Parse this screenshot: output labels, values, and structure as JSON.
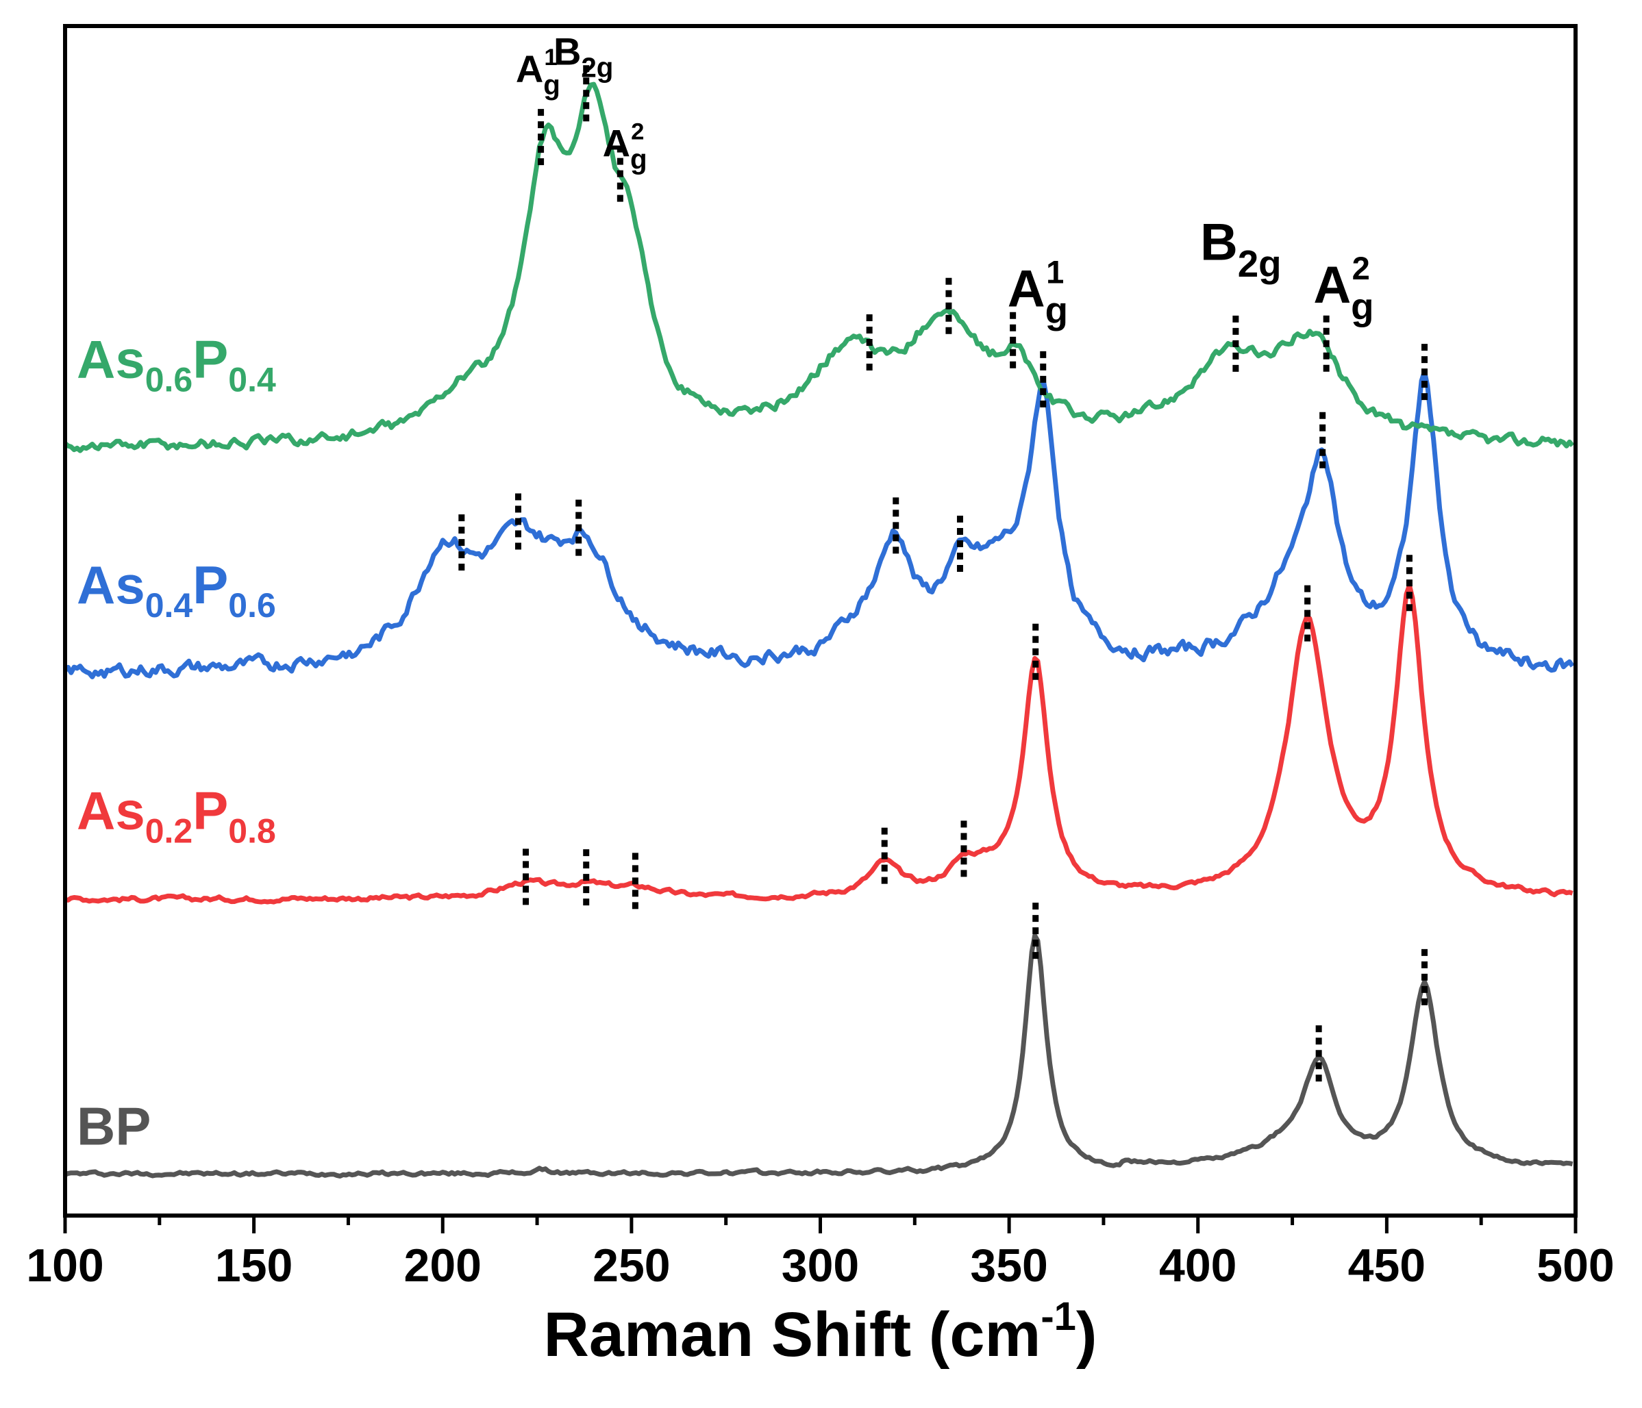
{
  "chart_data": {
    "type": "line",
    "title": "",
    "xlabel": "Raman Shift (cm",
    "xlabel_sup": "-1",
    "xlabel_close": ")",
    "ylabel": "",
    "xlim": [
      100,
      500
    ],
    "xticks": [
      "100",
      "150",
      "200",
      "250",
      "300",
      "350",
      "400",
      "450",
      "500"
    ],
    "yticks_shown": false,
    "series": [
      {
        "id": "bp",
        "name": "BP",
        "color": "#555555",
        "offset": 0,
        "baseline": 0.9,
        "peaks": [
          [
            357,
            16.8,
            3.5
          ],
          [
            432,
            6.7,
            5
          ],
          [
            460,
            12.9,
            4.5
          ],
          [
            423,
            1.2,
            12
          ],
          [
            226,
            0.25,
            3
          ]
        ],
        "noise": 0.12,
        "markers": [
          357,
          432,
          460
        ]
      },
      {
        "id": "as02",
        "name": "As",
        "sub1": "0.2",
        "name2": "P",
        "sub2": "0.8",
        "color": "#f0393c",
        "offset": 20,
        "baseline": 0,
        "peaks": [
          [
            357,
            16.5,
            4
          ],
          [
            429,
            19.3,
            6.5
          ],
          [
            456,
            21,
            4.5
          ],
          [
            317,
            2.3,
            5
          ],
          [
            338,
            1.6,
            5
          ],
          [
            222,
            1.0,
            8
          ],
          [
            238,
            0.8,
            8
          ],
          [
            252,
            0.6,
            8
          ],
          [
            345,
            1.2,
            8
          ]
        ],
        "noise": 0.15,
        "markers": [
          222,
          238,
          251,
          317,
          338,
          357,
          429,
          456
        ]
      },
      {
        "id": "as04",
        "name": "As",
        "sub1": "0.4",
        "name2": "P",
        "sub2": "0.6",
        "color": "#2f6fd6",
        "offset": 36,
        "baseline": 0,
        "peaks": [
          [
            359,
            17.5,
            4.5
          ],
          [
            433,
            12,
            5
          ],
          [
            460,
            20,
            4.5
          ],
          [
            425,
            5,
            12
          ],
          [
            320,
            7,
            5
          ],
          [
            337,
            5,
            7
          ],
          [
            200,
            7,
            9
          ],
          [
            220,
            7.5,
            12
          ],
          [
            238,
            7,
            10
          ],
          [
            348,
            5,
            9
          ],
          [
            312,
            2.5,
            9
          ]
        ],
        "noise": 0.45,
        "markers": [
          205,
          220,
          236,
          320,
          337,
          359,
          433,
          460
        ]
      },
      {
        "id": "as06",
        "name": "As",
        "sub1": "0.6",
        "name2": "P",
        "sub2": "0.4",
        "color": "#35a86a",
        "offset": 52,
        "baseline": 0,
        "peaks": [
          [
            227,
            17,
            7
          ],
          [
            240,
            19,
            7
          ],
          [
            250,
            9,
            6
          ],
          [
            205,
            2.5,
            10
          ],
          [
            307,
            5.5,
            12
          ],
          [
            333,
            8,
            12
          ],
          [
            352,
            4,
            6
          ],
          [
            408,
            5.5,
            14
          ],
          [
            430,
            6.5,
            10
          ]
        ],
        "noise": 0.35,
        "markers": [
          226,
          238,
          247,
          313,
          334,
          351,
          410,
          434
        ]
      }
    ],
    "mode_labels": [
      {
        "main": "A",
        "sub": "g",
        "sup": "1",
        "size": "small",
        "x_data": 227,
        "level": "top"
      },
      {
        "main": "B",
        "sub": "2g",
        "sup": "",
        "size": "small",
        "x_data": 237,
        "level": "top"
      },
      {
        "main": "A",
        "sub": "g",
        "sup": "2",
        "size": "small",
        "x_data": 250,
        "level": "top"
      },
      {
        "main": "A",
        "sub": "g",
        "sup": "1",
        "size": "big",
        "x_data": 360,
        "level": "mid"
      },
      {
        "main": "B",
        "sub": "2g",
        "sup": "",
        "size": "big",
        "x_data": 411,
        "level": "mid"
      },
      {
        "main": "A",
        "sub": "g",
        "sup": "2",
        "size": "big",
        "x_data": 441,
        "level": "mid"
      }
    ]
  }
}
